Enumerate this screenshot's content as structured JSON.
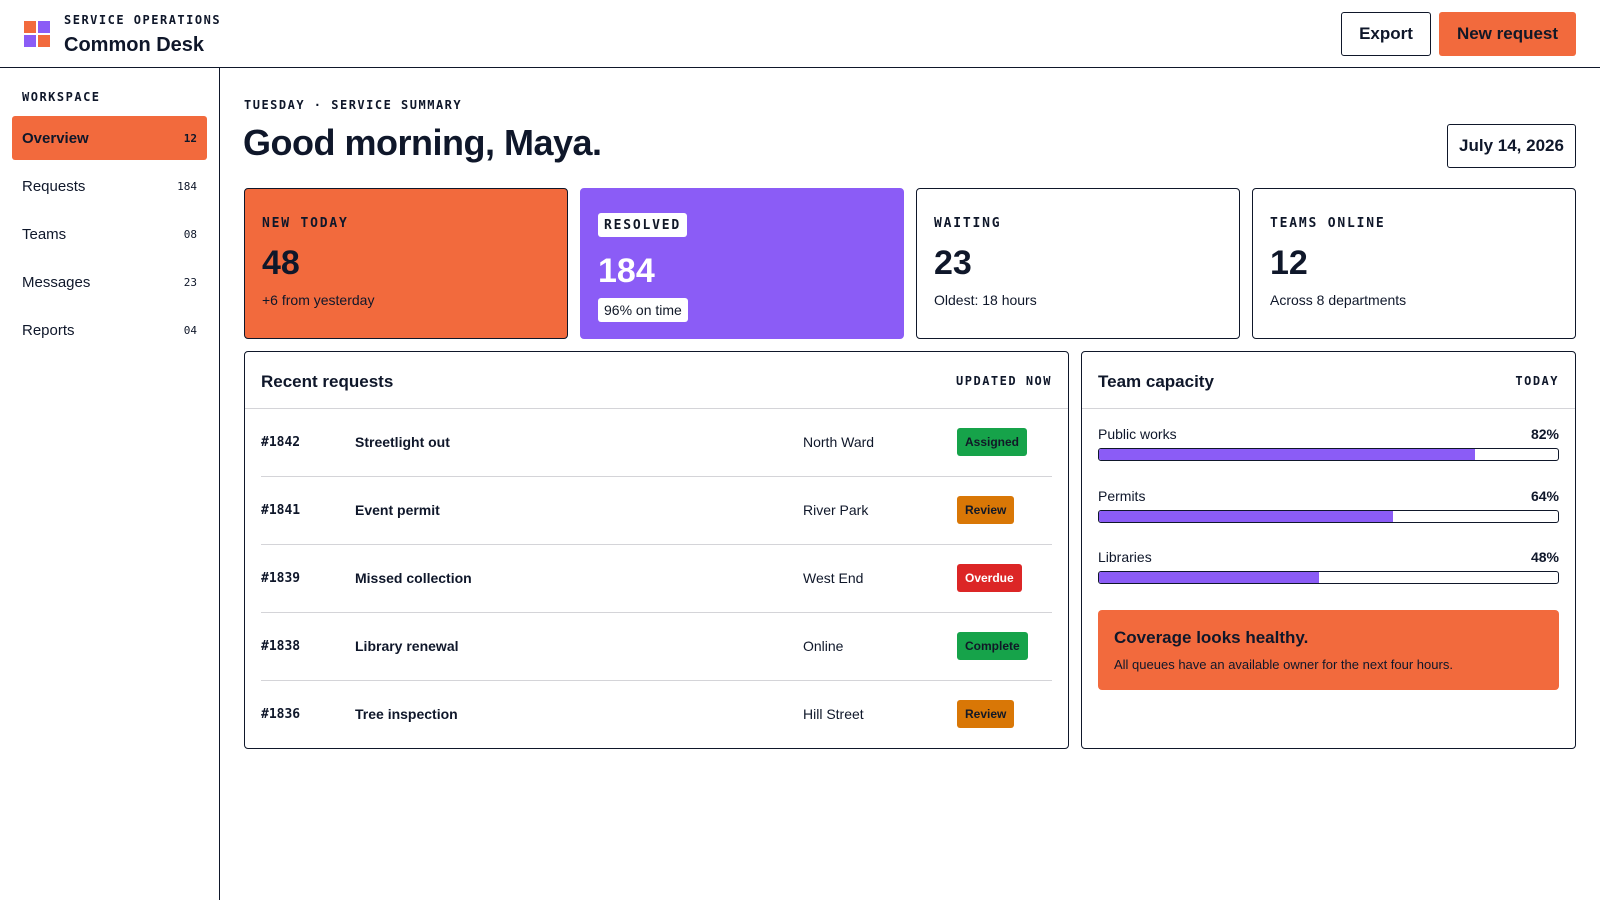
{
  "header": {
    "kicker": "SERVICE OPERATIONS",
    "app_name": "Common Desk",
    "export_label": "Export",
    "new_request_label": "New request"
  },
  "sidebar": {
    "heading": "WORKSPACE",
    "items": [
      {
        "label": "Overview",
        "count": "12",
        "active": true
      },
      {
        "label": "Requests",
        "count": "184"
      },
      {
        "label": "Teams",
        "count": "08"
      },
      {
        "label": "Messages",
        "count": "23"
      },
      {
        "label": "Reports",
        "count": "04"
      }
    ]
  },
  "main": {
    "kicker": "TUESDAY · SERVICE SUMMARY",
    "greeting": "Good morning, Maya.",
    "date": "July 14, 2026"
  },
  "stats": [
    {
      "label": "NEW TODAY",
      "value": "48",
      "sub": "+6 from yesterday"
    },
    {
      "label": "RESOLVED",
      "value": "184",
      "sub": "96% on time"
    },
    {
      "label": "WAITING",
      "value": "23",
      "sub": "Oldest: 18 hours"
    },
    {
      "label": "TEAMS ONLINE",
      "value": "12",
      "sub": "Across 8 departments"
    }
  ],
  "requests": {
    "title": "Recent requests",
    "tag": "UPDATED NOW",
    "rows": [
      {
        "id": "#1842",
        "title": "Streetlight out",
        "location": "North Ward",
        "status": "Assigned"
      },
      {
        "id": "#1841",
        "title": "Event permit",
        "location": "River Park",
        "status": "Review"
      },
      {
        "id": "#1839",
        "title": "Missed collection",
        "location": "West End",
        "status": "Overdue"
      },
      {
        "id": "#1838",
        "title": "Library renewal",
        "location": "Online",
        "status": "Complete"
      },
      {
        "id": "#1836",
        "title": "Tree inspection",
        "location": "Hill Street",
        "status": "Review"
      }
    ]
  },
  "capacity": {
    "title": "Team capacity",
    "tag": "TODAY",
    "teams": [
      {
        "name": "Public works",
        "percent_label": "82%",
        "fraction": 0.82
      },
      {
        "name": "Permits",
        "percent_label": "64%",
        "fraction": 0.64
      },
      {
        "name": "Libraries",
        "percent_label": "48%",
        "fraction": 0.48
      }
    ],
    "callout_title": "Coverage looks healthy.",
    "callout_text": "All queues have an available owner for the next four hours."
  },
  "colors": {
    "accent_orange": "#f26a3d",
    "accent_purple": "#8b5cf6",
    "status_assigned": "#16a34a",
    "status_review": "#d97706",
    "status_overdue": "#dc2626",
    "status_complete": "#16a34a"
  }
}
